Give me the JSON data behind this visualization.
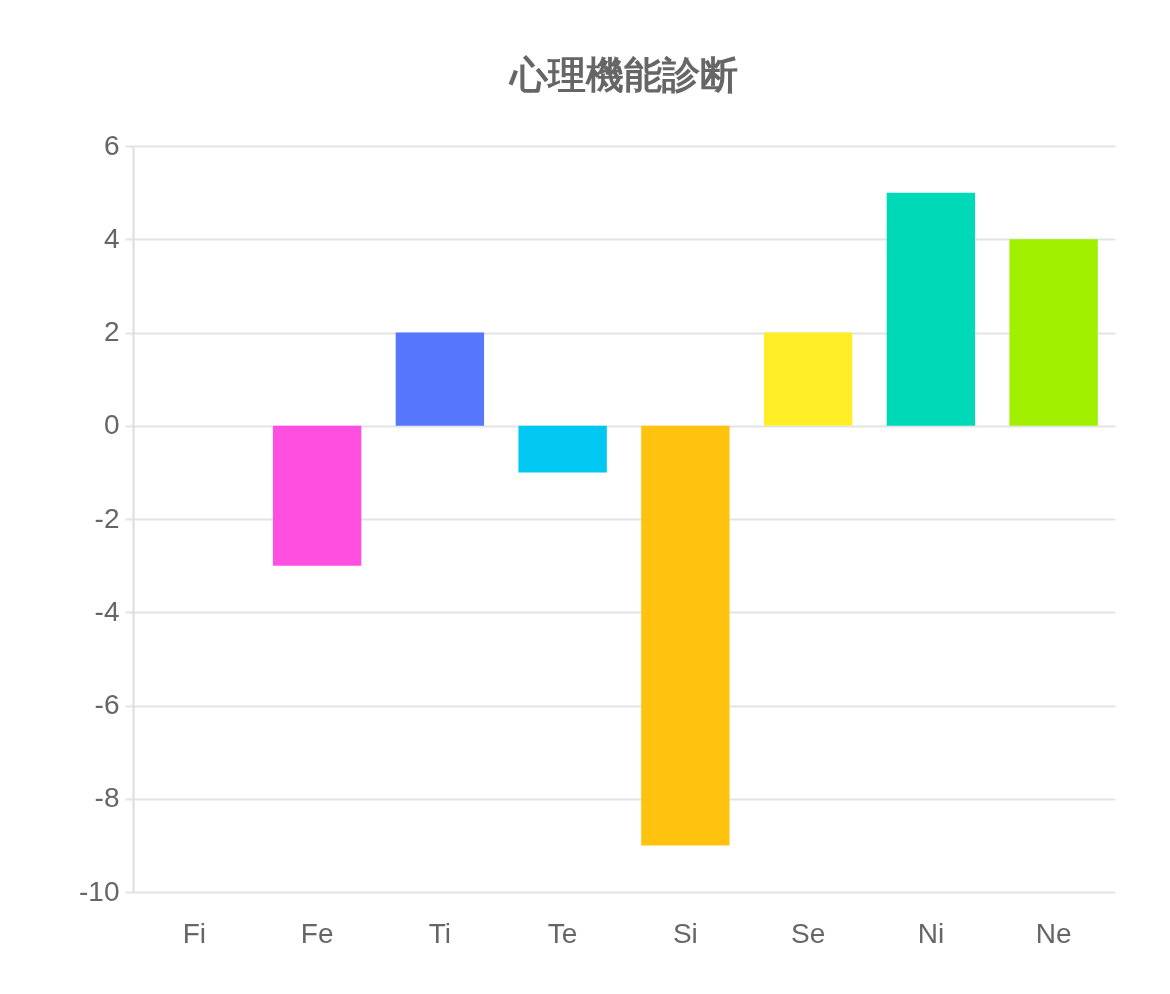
{
  "chart_data": {
    "type": "bar",
    "title": "心理機能診断",
    "categories": [
      "Fi",
      "Fe",
      "Ti",
      "Te",
      "Si",
      "Se",
      "Ni",
      "Ne"
    ],
    "values": [
      0,
      -3,
      2,
      -1,
      -9,
      2,
      5,
      4
    ],
    "colors": [
      "#ff6384",
      "#ff4fe0",
      "#5677fc",
      "#00c8f0",
      "#ffc30f",
      "#ffee26",
      "#00d9b8",
      "#a0f000"
    ],
    "ylim": [
      -10,
      6
    ],
    "yticks": [
      -10,
      -8,
      -6,
      -4,
      -2,
      0,
      2,
      4,
      6
    ],
    "grid": "y"
  }
}
